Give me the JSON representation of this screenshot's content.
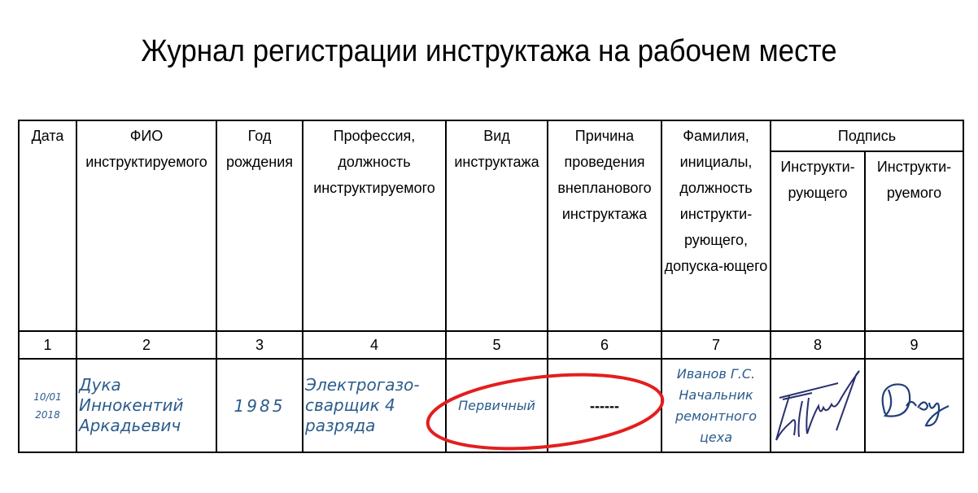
{
  "title": "Журнал регистрации инструктажа на рабочем месте",
  "headers": {
    "date": "Дата",
    "fio": "ФИО инструктируемого",
    "birth_year": "Год рождения",
    "profession": "Профессия, должность инструктируемого",
    "briefing_type": "Вид инструктажа",
    "reason": "Причина проведения внепланового инструктажа",
    "instructor": "Фамилия, инициалы, должность инструкти-рующего, допуска-ющего",
    "signature": "Подпись",
    "sig_instructor": "Инструкти-рующего",
    "sig_instructed": "Инструкти-руемого"
  },
  "column_numbers": [
    "1",
    "2",
    "3",
    "4",
    "5",
    "6",
    "7",
    "8",
    "9"
  ],
  "row": {
    "date_line1": "10/01",
    "date_line2": "2018",
    "fio_line1": "Дука",
    "fio_line2": "Иннокентий",
    "fio_line3": "Аркадьевич",
    "birth_year": "1985",
    "profession_line1": "Электрогазо-",
    "profession_line2": "сварщик 4",
    "profession_line3": "разряда",
    "briefing_type": "Первичный",
    "reason": "------",
    "instructor_line1": "Иванов Г.С.",
    "instructor_line2": "Начальник",
    "instructor_line3": "ремонтного",
    "instructor_line4": "цеха"
  },
  "colors": {
    "handwriting": "#2b5c8c",
    "highlight_oval": "#e31e1e"
  }
}
